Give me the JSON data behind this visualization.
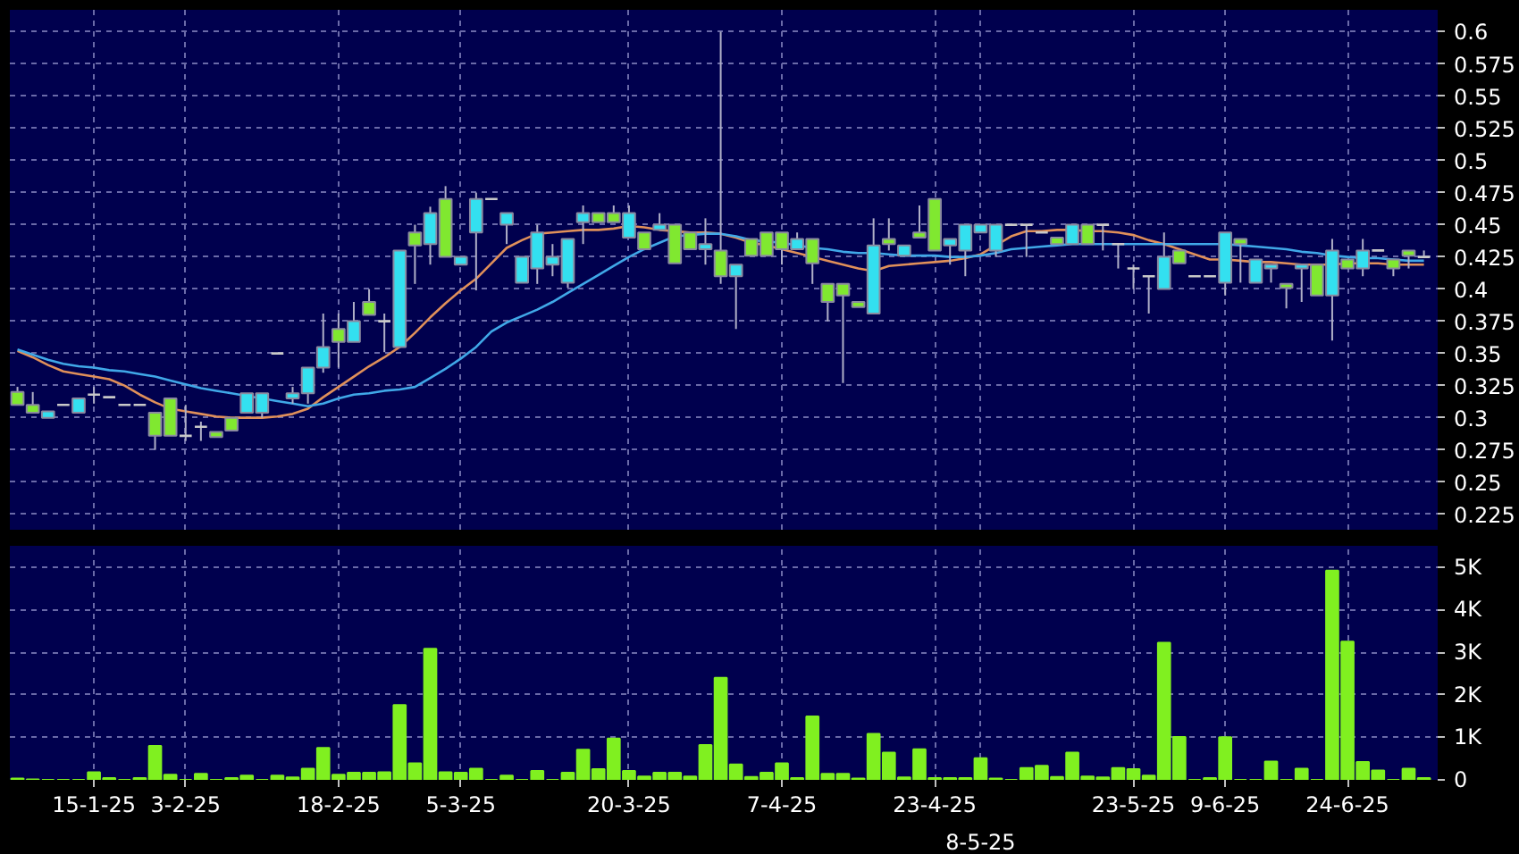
{
  "chart_data": [
    {
      "type": "candlestick",
      "categories": [
        null,
        null,
        null,
        null,
        null,
        null,
        null,
        null,
        null,
        null,
        null,
        null,
        null,
        null,
        null,
        null,
        null,
        null,
        null,
        null,
        null,
        null,
        null,
        null,
        null,
        null,
        null,
        null,
        null,
        null,
        null,
        null,
        null,
        null,
        null,
        null,
        null,
        null,
        null,
        null,
        null,
        null,
        null,
        null,
        null,
        null,
        null,
        null,
        null,
        null,
        null,
        null,
        null,
        null,
        null,
        null,
        null,
        null,
        null,
        null,
        null,
        null,
        null,
        null,
        null,
        null,
        null,
        null,
        null,
        null,
        null,
        null,
        null,
        null,
        null,
        null,
        null,
        null,
        null,
        null,
        null,
        null,
        null,
        null,
        null,
        null,
        null,
        null,
        null,
        null,
        null,
        null,
        null
      ],
      "ohlc": [
        [
          0.32,
          0.324,
          0.31,
          0.31
        ],
        [
          0.31,
          0.32,
          0.304,
          0.304
        ],
        [
          0.3,
          0.305,
          0.3,
          0.305
        ],
        [
          0.31,
          0.31,
          0.31,
          0.31
        ],
        [
          0.304,
          0.315,
          0.304,
          0.315
        ],
        [
          0.318,
          0.324,
          0.311,
          0.318
        ],
        [
          0.316,
          0.316,
          0.316,
          0.316
        ],
        [
          0.31,
          0.31,
          0.31,
          0.31
        ],
        [
          0.31,
          0.31,
          0.31,
          0.31
        ],
        [
          0.304,
          0.304,
          0.275,
          0.286
        ],
        [
          0.315,
          0.315,
          0.286,
          0.286
        ],
        [
          0.286,
          0.31,
          0.282,
          0.286
        ],
        [
          0.293,
          0.297,
          0.282,
          0.293
        ],
        [
          0.289,
          0.289,
          0.285,
          0.285
        ],
        [
          0.3,
          0.3,
          0.29,
          0.29
        ],
        [
          0.304,
          0.319,
          0.304,
          0.319
        ],
        [
          0.304,
          0.319,
          0.3,
          0.319
        ],
        [
          0.35,
          0.35,
          0.35,
          0.35
        ],
        [
          0.315,
          0.324,
          0.311,
          0.319
        ],
        [
          0.319,
          0.339,
          0.311,
          0.339
        ],
        [
          0.339,
          0.381,
          0.335,
          0.355
        ],
        [
          0.369,
          0.381,
          0.339,
          0.359
        ],
        [
          0.359,
          0.39,
          0.359,
          0.375
        ],
        [
          0.39,
          0.4,
          0.38,
          0.38
        ],
        [
          0.375,
          0.381,
          0.351,
          0.375
        ],
        [
          0.355,
          0.43,
          0.355,
          0.43
        ],
        [
          0.444,
          0.45,
          0.404,
          0.434
        ],
        [
          0.435,
          0.464,
          0.419,
          0.459
        ],
        [
          0.47,
          0.48,
          0.425,
          0.425
        ],
        [
          0.419,
          0.425,
          0.419,
          0.425
        ],
        [
          0.444,
          0.475,
          0.399,
          0.47
        ],
        [
          0.47,
          0.47,
          0.47,
          0.47
        ],
        [
          0.45,
          0.459,
          0.435,
          0.459
        ],
        [
          0.405,
          0.425,
          0.405,
          0.425
        ],
        [
          0.416,
          0.45,
          0.404,
          0.444
        ],
        [
          0.419,
          0.435,
          0.41,
          0.425
        ],
        [
          0.405,
          0.439,
          0.401,
          0.439
        ],
        [
          0.452,
          0.465,
          0.435,
          0.459
        ],
        [
          0.459,
          0.459,
          0.452,
          0.452
        ],
        [
          0.459,
          0.465,
          0.452,
          0.452
        ],
        [
          0.44,
          0.465,
          0.44,
          0.459
        ],
        [
          0.444,
          0.444,
          0.431,
          0.431
        ],
        [
          0.446,
          0.459,
          0.446,
          0.45
        ],
        [
          0.45,
          0.45,
          0.42,
          0.42
        ],
        [
          0.444,
          0.444,
          0.431,
          0.431
        ],
        [
          0.431,
          0.455,
          0.419,
          0.435
        ],
        [
          0.43,
          0.6,
          0.404,
          0.41
        ],
        [
          0.41,
          0.419,
          0.369,
          0.419
        ],
        [
          0.439,
          0.439,
          0.426,
          0.426
        ],
        [
          0.444,
          0.444,
          0.426,
          0.426
        ],
        [
          0.444,
          0.444,
          0.419,
          0.431
        ],
        [
          0.431,
          0.444,
          0.431,
          0.439
        ],
        [
          0.439,
          0.439,
          0.404,
          0.42
        ],
        [
          0.404,
          0.404,
          0.375,
          0.39
        ],
        [
          0.404,
          0.404,
          0.327,
          0.395
        ],
        [
          0.39,
          0.39,
          0.386,
          0.386
        ],
        [
          0.381,
          0.455,
          0.381,
          0.434
        ],
        [
          0.439,
          0.455,
          0.43,
          0.435
        ],
        [
          0.426,
          0.434,
          0.426,
          0.434
        ],
        [
          0.444,
          0.465,
          0.44,
          0.44
        ],
        [
          0.47,
          0.47,
          0.43,
          0.43
        ],
        [
          0.434,
          0.439,
          0.419,
          0.439
        ],
        [
          0.43,
          0.45,
          0.41,
          0.45
        ],
        [
          0.444,
          0.45,
          0.444,
          0.45
        ],
        [
          0.43,
          0.45,
          0.425,
          0.45
        ],
        [
          0.45,
          0.45,
          0.45,
          0.45
        ],
        [
          0.45,
          0.45,
          0.425,
          0.45
        ],
        [
          0.444,
          0.444,
          0.444,
          0.444
        ],
        [
          0.44,
          0.44,
          0.435,
          0.435
        ],
        [
          0.435,
          0.45,
          0.435,
          0.45
        ],
        [
          0.45,
          0.45,
          0.435,
          0.435
        ],
        [
          0.45,
          0.45,
          0.43,
          0.45
        ],
        [
          0.435,
          0.435,
          0.416,
          0.435
        ],
        [
          0.416,
          0.419,
          0.4,
          0.416
        ],
        [
          0.41,
          0.41,
          0.381,
          0.41
        ],
        [
          0.4,
          0.444,
          0.4,
          0.425
        ],
        [
          0.43,
          0.43,
          0.42,
          0.42
        ],
        [
          0.41,
          0.41,
          0.41,
          0.41
        ],
        [
          0.41,
          0.41,
          0.41,
          0.41
        ],
        [
          0.405,
          0.444,
          0.395,
          0.444
        ],
        [
          0.439,
          0.439,
          0.405,
          0.435
        ],
        [
          0.405,
          0.423,
          0.405,
          0.423
        ],
        [
          0.416,
          0.419,
          0.405,
          0.419
        ],
        [
          0.404,
          0.404,
          0.385,
          0.401
        ],
        [
          0.416,
          0.419,
          0.39,
          0.419
        ],
        [
          0.419,
          0.419,
          0.395,
          0.395
        ],
        [
          0.395,
          0.439,
          0.36,
          0.43
        ],
        [
          0.423,
          0.423,
          0.416,
          0.416
        ],
        [
          0.416,
          0.439,
          0.41,
          0.43
        ],
        [
          0.43,
          0.43,
          0.43,
          0.43
        ],
        [
          0.423,
          0.423,
          0.41,
          0.416
        ],
        [
          0.43,
          0.43,
          0.416,
          0.426
        ],
        [
          0.425,
          0.43,
          0.425,
          0.425
        ]
      ],
      "colors": [
        "#80e830",
        "#80e830",
        "#33e0f0",
        "#c8c8c8",
        "#33e0f0",
        "#c8c8c8",
        "#c8c8c8",
        "#c8c8c8",
        "#c8c8c8",
        "#80e830",
        "#80e830",
        "#c8c8c8",
        "#c8c8c8",
        "#80e830",
        "#80e830",
        "#33e0f0",
        "#33e0f0",
        "#c8c8c8",
        "#33e0f0",
        "#33e0f0",
        "#33e0f0",
        "#80e830",
        "#33e0f0",
        "#80e830",
        "#c8c8c8",
        "#33e0f0",
        "#80e830",
        "#33e0f0",
        "#80e830",
        "#33e0f0",
        "#33e0f0",
        "#c8c8c8",
        "#33e0f0",
        "#33e0f0",
        "#33e0f0",
        "#33e0f0",
        "#33e0f0",
        "#33e0f0",
        "#80e830",
        "#80e830",
        "#33e0f0",
        "#80e830",
        "#33e0f0",
        "#80e830",
        "#80e830",
        "#33e0f0",
        "#80e830",
        "#33e0f0",
        "#80e830",
        "#80e830",
        "#80e830",
        "#33e0f0",
        "#80e830",
        "#80e830",
        "#80e830",
        "#80e830",
        "#33e0f0",
        "#80e830",
        "#33e0f0",
        "#80e830",
        "#80e830",
        "#33e0f0",
        "#33e0f0",
        "#33e0f0",
        "#33e0f0",
        "#c8c8c8",
        "#c8c8c8",
        "#c8c8c8",
        "#80e830",
        "#33e0f0",
        "#80e830",
        "#c8c8c8",
        "#c8c8c8",
        "#c8c8c8",
        "#c8c8c8",
        "#33e0f0",
        "#80e830",
        "#c8c8c8",
        "#c8c8c8",
        "#33e0f0",
        "#80e830",
        "#33e0f0",
        "#33e0f0",
        "#80e830",
        "#33e0f0",
        "#80e830",
        "#33e0f0",
        "#80e830",
        "#33e0f0",
        "#c8c8c8",
        "#80e830",
        "#80e830",
        "#c8c8c8"
      ],
      "series": [
        {
          "type": "line",
          "color": "#e0905a",
          "values": [
            0.352,
            0.347,
            0.341,
            0.336,
            0.334,
            0.332,
            0.33,
            0.325,
            0.318,
            0.312,
            0.307,
            0.305,
            0.303,
            0.301,
            0.3,
            0.3,
            0.3,
            0.301,
            0.303,
            0.307,
            0.316,
            0.324,
            0.332,
            0.34,
            0.347,
            0.355,
            0.366,
            0.378,
            0.389,
            0.399,
            0.408,
            0.42,
            0.432,
            0.438,
            0.443,
            0.444,
            0.445,
            0.446,
            0.446,
            0.447,
            0.449,
            0.448,
            0.446,
            0.445,
            0.444,
            0.444,
            0.443,
            0.44,
            0.436,
            0.434,
            0.431,
            0.428,
            0.425,
            0.422,
            0.419,
            0.416,
            0.414,
            0.418,
            0.419,
            0.42,
            0.421,
            0.422,
            0.424,
            0.427,
            0.434,
            0.441,
            0.445,
            0.445,
            0.446,
            0.446,
            0.445,
            0.445,
            0.444,
            0.442,
            0.438,
            0.435,
            0.431,
            0.427,
            0.423,
            0.423,
            0.422,
            0.421,
            0.421,
            0.42,
            0.419,
            0.419,
            0.419,
            0.42,
            0.42,
            0.42,
            0.419,
            0.419,
            0.419
          ]
        },
        {
          "type": "line",
          "color": "#40a8e8",
          "values": [
            0.353,
            0.349,
            0.345,
            0.342,
            0.34,
            0.339,
            0.337,
            0.336,
            0.334,
            0.332,
            0.329,
            0.326,
            0.323,
            0.321,
            0.319,
            0.317,
            0.315,
            0.313,
            0.311,
            0.309,
            0.311,
            0.315,
            0.318,
            0.319,
            0.321,
            0.322,
            0.324,
            0.331,
            0.338,
            0.346,
            0.355,
            0.367,
            0.374,
            0.379,
            0.384,
            0.39,
            0.397,
            0.404,
            0.411,
            0.418,
            0.425,
            0.431,
            0.436,
            0.441,
            0.442,
            0.443,
            0.443,
            0.441,
            0.438,
            0.437,
            0.436,
            0.434,
            0.432,
            0.431,
            0.429,
            0.428,
            0.428,
            0.427,
            0.426,
            0.426,
            0.426,
            0.425,
            0.425,
            0.426,
            0.428,
            0.431,
            0.432,
            0.433,
            0.434,
            0.435,
            0.435,
            0.435,
            0.435,
            0.435,
            0.435,
            0.435,
            0.435,
            0.435,
            0.435,
            0.435,
            0.434,
            0.433,
            0.432,
            0.431,
            0.429,
            0.428,
            0.426,
            0.425,
            0.424,
            0.424,
            0.423,
            0.422,
            0.422
          ]
        }
      ],
      "ylim": [
        0.213,
        0.617
      ],
      "yticks": [
        0.225,
        0.25,
        0.275,
        0.3,
        0.325,
        0.35,
        0.375,
        0.4,
        0.425,
        0.45,
        0.475,
        0.5,
        0.525,
        0.55,
        0.575,
        0.6
      ],
      "grid": true,
      "tick_labels": "y"
    },
    {
      "type": "bar",
      "categories": [
        null,
        null,
        null,
        null,
        null,
        "15-1-25",
        null,
        null,
        null,
        null,
        null,
        "3-2-25",
        null,
        null,
        null,
        null,
        null,
        null,
        null,
        null,
        null,
        "18-2-25",
        null,
        null,
        null,
        null,
        null,
        null,
        null,
        "5-3-25",
        null,
        null,
        null,
        null,
        null,
        null,
        null,
        null,
        null,
        null,
        "20-3-25",
        null,
        null,
        null,
        null,
        null,
        null,
        null,
        null,
        null,
        "7-4-25",
        null,
        null,
        null,
        null,
        null,
        null,
        null,
        null,
        null,
        "23-4-25",
        null,
        null,
        "8-5-25",
        null,
        null,
        null,
        null,
        null,
        null,
        null,
        null,
        null,
        "23-5-25",
        null,
        null,
        null,
        null,
        null,
        "9-6-25",
        null,
        null,
        null,
        null,
        null,
        null,
        null,
        "24-6-25",
        null,
        null,
        null,
        null,
        null
      ],
      "values": [
        0.03,
        0.01,
        0,
        0,
        0,
        0.18,
        0.04,
        0,
        0.04,
        0.8,
        0.12,
        0,
        0.14,
        0,
        0.04,
        0.1,
        0,
        0.1,
        0.06,
        0.26,
        0.75,
        0.12,
        0.17,
        0.17,
        0.18,
        1.76,
        0.39,
        3.08,
        0.18,
        0.17,
        0.26,
        0,
        0.1,
        0,
        0.21,
        0,
        0.17,
        0.71,
        0.25,
        0.97,
        0.21,
        0.08,
        0.17,
        0.17,
        0.08,
        0.82,
        2.4,
        0.36,
        0.07,
        0.17,
        0.39,
        0.04,
        1.49,
        0.14,
        0.14,
        0.03,
        1.08,
        0.64,
        0.06,
        0.72,
        0.04,
        0.04,
        0.04,
        0.51,
        0.03,
        0,
        0.28,
        0.33,
        0.07,
        0.64,
        0.08,
        0.06,
        0.28,
        0.25,
        0.1,
        3.22,
        1.01,
        0,
        0.04,
        1.0,
        0,
        0,
        0.43,
        0,
        0.26,
        0,
        4.92,
        3.25,
        0.42,
        0.22,
        0,
        0.26,
        0.04
      ],
      "color": "#80f020",
      "ylim": [
        0,
        5.5
      ],
      "yticks": [
        0,
        {
          "value": 1,
          "label": "1K"
        },
        {
          "value": 2,
          "label": "2K"
        },
        {
          "value": 3,
          "label": "3K"
        },
        {
          "value": 4,
          "label": "4K"
        },
        {
          "value": 5,
          "label": "5K"
        }
      ],
      "grid": true
    }
  ]
}
